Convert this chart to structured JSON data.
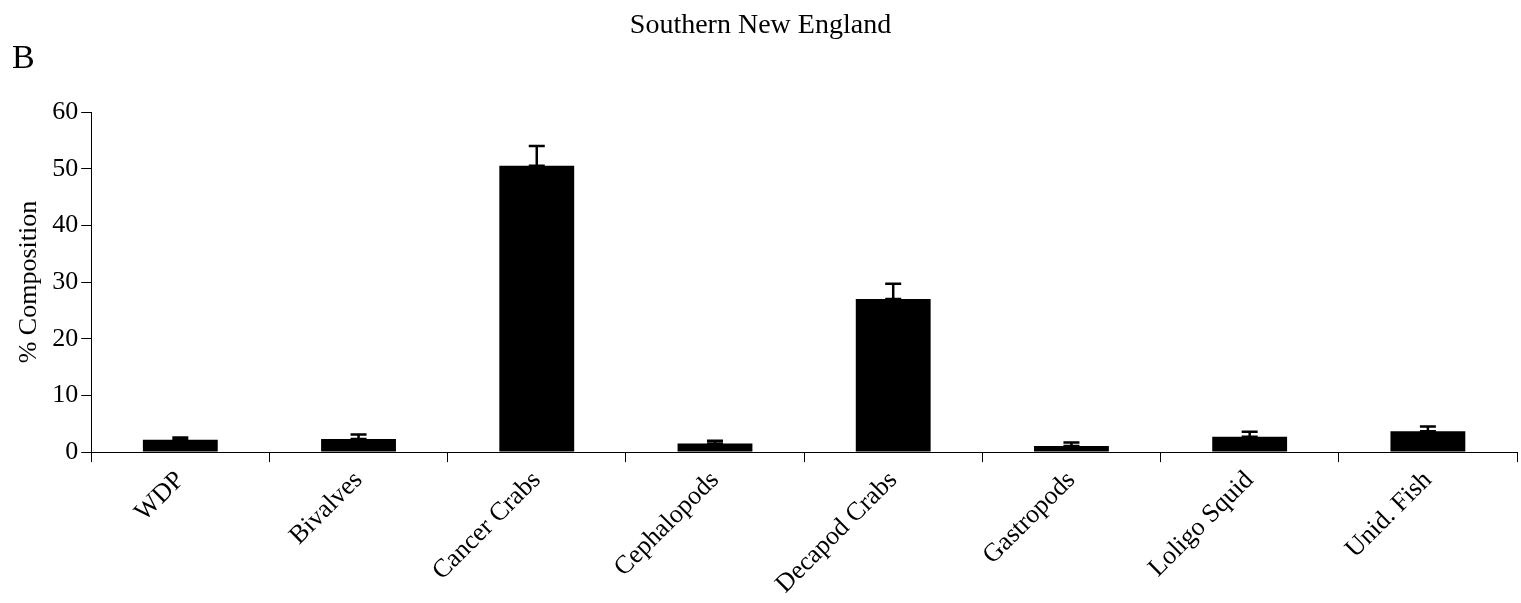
{
  "chart_data": {
    "type": "bar",
    "title": "Southern New England",
    "ylabel": "% Composition",
    "annotations": [
      "B"
    ],
    "categories": [
      "WDP",
      "Bivalves",
      "Cancer Crabs",
      "Cephalopods",
      "Decapod Crabs",
      "Gastropods",
      "Loligo Squid",
      "Unid. Fish"
    ],
    "values": [
      2.2,
      2.3,
      50.5,
      1.5,
      27,
      1.1,
      2.7,
      3.7
    ],
    "errors": [
      [
        2.2,
        2.6
      ],
      [
        2.3,
        3.1
      ],
      [
        50.5,
        54
      ],
      [
        1.5,
        2
      ],
      [
        27,
        29.7
      ],
      [
        1.1,
        1.7
      ],
      [
        2.7,
        3.6
      ],
      [
        3.7,
        4.5
      ]
    ],
    "color": "#000000",
    "ylim": [
      0,
      60
    ],
    "yticks": [
      0,
      10,
      20,
      30,
      40,
      50,
      60
    ],
    "grid": false,
    "legend": false
  }
}
